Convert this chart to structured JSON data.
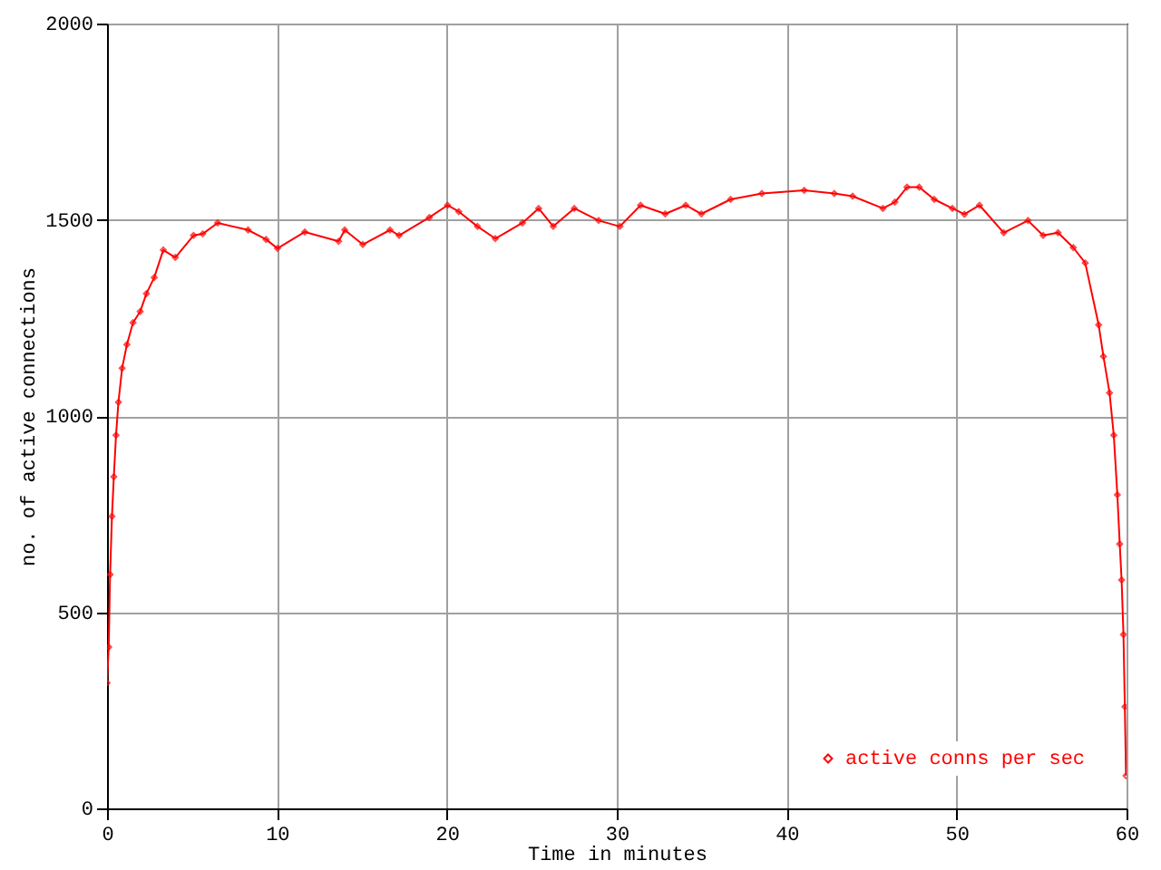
{
  "chart_data": {
    "type": "line",
    "xlabel": "Time in minutes",
    "ylabel": "no. of active connections",
    "xlim": [
      0,
      60
    ],
    "xticks": [
      0,
      10,
      20,
      30,
      40,
      50,
      60
    ],
    "ylim": [
      0,
      2000
    ],
    "yticks": [
      0,
      500,
      1000,
      1500,
      2000
    ],
    "grid": true,
    "legend": "bottom right",
    "marker": "diamond",
    "line_style": "solid",
    "x": [
      0,
      0.1,
      0.18,
      0.29,
      0.4,
      0.53,
      0.67,
      0.89,
      1.17,
      1.53,
      1.95,
      2.32,
      2.78,
      3.31,
      4.02,
      5.09,
      5.63,
      6.51,
      8.3,
      9.36,
      10.03,
      11.64,
      13.63,
      13.99,
      15.05,
      16.65,
      17.19,
      18.97,
      20.04,
      20.7,
      21.8,
      22.85,
      24.45,
      25.4,
      26.26,
      27.5,
      28.93,
      30.18,
      31.4,
      32.85,
      34.06,
      34.98,
      36.7,
      38.54,
      41.03,
      42.8,
      43.88,
      45.66,
      46.37,
      47.08,
      47.8,
      48.68,
      49.75,
      50.46,
      51.35,
      52.77,
      54.2,
      55.09,
      55.97,
      56.87,
      57.57,
      58.36,
      58.64,
      59.0,
      59.25,
      59.46,
      59.6,
      59.71,
      59.82,
      59.9,
      59.97
    ],
    "series": [
      {
        "name": "active conns per sec",
        "color": "#ff0000",
        "values": [
          320,
          411,
          596,
          744,
          845,
          951,
          1035,
          1122,
          1182,
          1238,
          1266,
          1312,
          1353,
          1423,
          1404,
          1460,
          1464,
          1492,
          1474,
          1450,
          1427,
          1469,
          1445,
          1474,
          1437,
          1474,
          1460,
          1506,
          1537,
          1521,
          1483,
          1452,
          1492,
          1529,
          1483,
          1529,
          1498,
          1483,
          1537,
          1515,
          1537,
          1515,
          1552,
          1567,
          1575,
          1567,
          1560,
          1529,
          1545,
          1583,
          1583,
          1552,
          1529,
          1514,
          1537,
          1467,
          1498,
          1460,
          1467,
          1429,
          1390,
          1232,
          1152,
          1059,
          951,
          799,
          674,
          582,
          443,
          259,
          83
        ]
      }
    ]
  }
}
